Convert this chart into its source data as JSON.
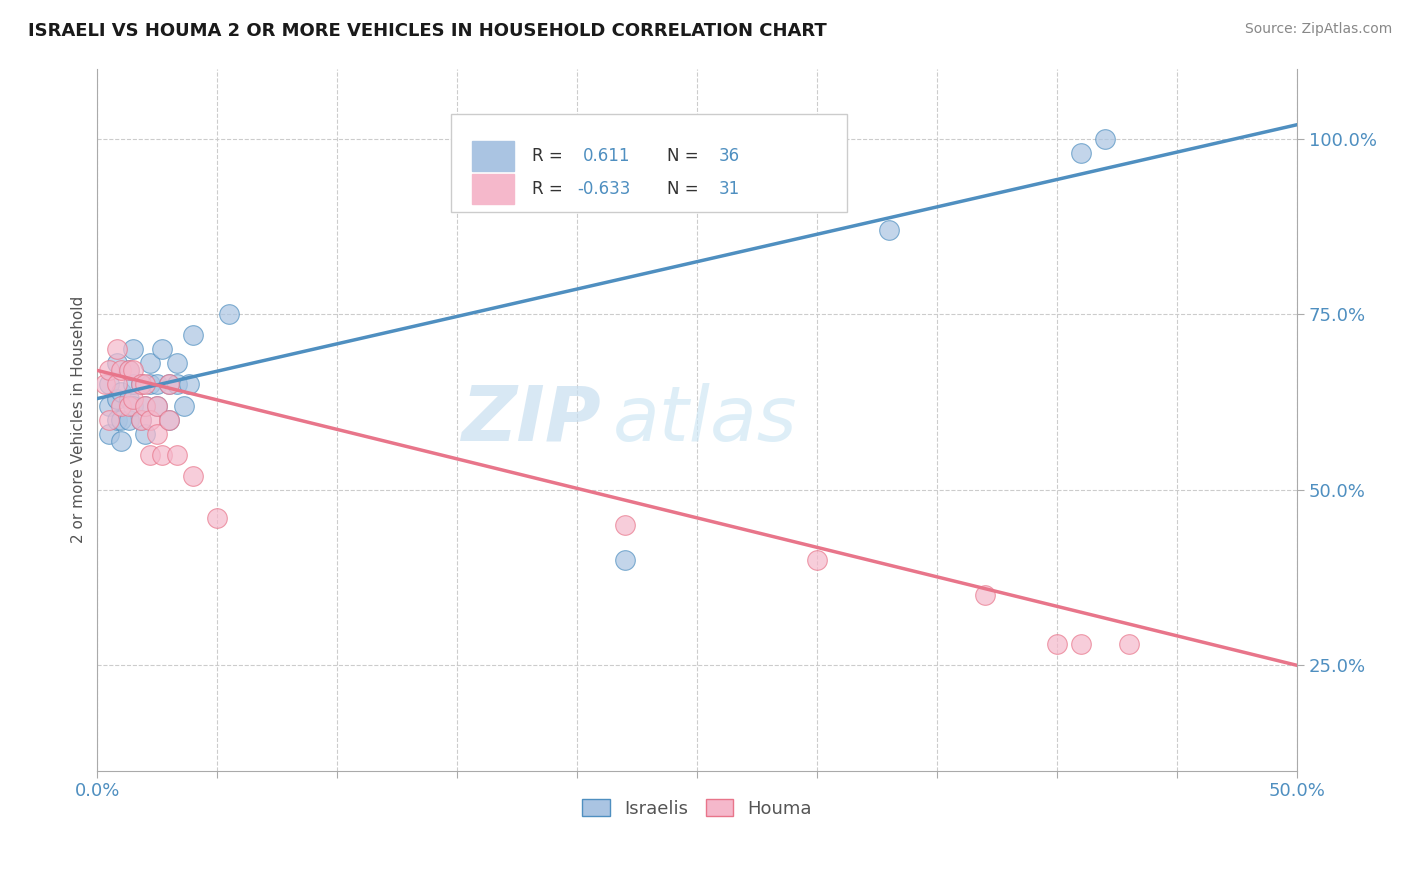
{
  "title": "ISRAELI VS HOUMA 2 OR MORE VEHICLES IN HOUSEHOLD CORRELATION CHART",
  "source": "Source: ZipAtlas.com",
  "xlim": [
    0.0,
    0.5
  ],
  "ylim": [
    0.1,
    1.1
  ],
  "israeli_R": 0.611,
  "israeli_N": 36,
  "houma_R": -0.633,
  "houma_N": 31,
  "israeli_color": "#aac4e2",
  "houma_color": "#f5b8cb",
  "israeli_line_color": "#4f8fc0",
  "houma_line_color": "#e8758a",
  "watermark_zip": "ZIP",
  "watermark_atlas": "atlas",
  "israeli_scatter_x": [
    0.005,
    0.005,
    0.005,
    0.008,
    0.008,
    0.008,
    0.01,
    0.01,
    0.01,
    0.013,
    0.013,
    0.013,
    0.015,
    0.015,
    0.015,
    0.018,
    0.018,
    0.02,
    0.02,
    0.022,
    0.022,
    0.025,
    0.025,
    0.027,
    0.03,
    0.03,
    0.033,
    0.033,
    0.036,
    0.038,
    0.04,
    0.055,
    0.22,
    0.33,
    0.41,
    0.42
  ],
  "israeli_scatter_y": [
    0.62,
    0.65,
    0.58,
    0.6,
    0.63,
    0.68,
    0.57,
    0.6,
    0.64,
    0.6,
    0.63,
    0.67,
    0.62,
    0.65,
    0.7,
    0.6,
    0.65,
    0.62,
    0.58,
    0.65,
    0.68,
    0.62,
    0.65,
    0.7,
    0.6,
    0.65,
    0.65,
    0.68,
    0.62,
    0.65,
    0.72,
    0.75,
    0.4,
    0.87,
    0.98,
    1.0
  ],
  "houma_scatter_x": [
    0.003,
    0.005,
    0.005,
    0.008,
    0.008,
    0.01,
    0.01,
    0.013,
    0.013,
    0.015,
    0.015,
    0.018,
    0.018,
    0.02,
    0.02,
    0.022,
    0.022,
    0.025,
    0.025,
    0.027,
    0.03,
    0.03,
    0.033,
    0.04,
    0.05,
    0.22,
    0.3,
    0.37,
    0.4,
    0.41,
    0.43
  ],
  "houma_scatter_y": [
    0.65,
    0.6,
    0.67,
    0.65,
    0.7,
    0.62,
    0.67,
    0.62,
    0.67,
    0.63,
    0.67,
    0.6,
    0.65,
    0.62,
    0.65,
    0.55,
    0.6,
    0.58,
    0.62,
    0.55,
    0.6,
    0.65,
    0.55,
    0.52,
    0.46,
    0.45,
    0.4,
    0.35,
    0.28,
    0.28,
    0.28
  ],
  "israeli_line_x": [
    0.0,
    0.5
  ],
  "israeli_line_y": [
    0.63,
    1.02
  ],
  "houma_line_x": [
    0.0,
    0.5
  ],
  "houma_line_y": [
    0.67,
    0.25
  ],
  "legend_box_color": "#aac4e2",
  "legend_box_color2": "#f5b8cb",
  "legend_R_color": "#4f8fc0",
  "axis_tick_color": "#4f8fc0",
  "background_color": "#ffffff",
  "grid_color": "#cccccc",
  "ylabel": "2 or more Vehicles in Household",
  "ytick_positions": [
    0.25,
    0.5,
    0.75,
    1.0
  ],
  "ytick_labels": [
    "25.0%",
    "50.0%",
    "75.0%",
    "100.0%"
  ],
  "xtick_positions": [
    0.0,
    0.05,
    0.1,
    0.15,
    0.2,
    0.25,
    0.3,
    0.35,
    0.4,
    0.45,
    0.5
  ]
}
